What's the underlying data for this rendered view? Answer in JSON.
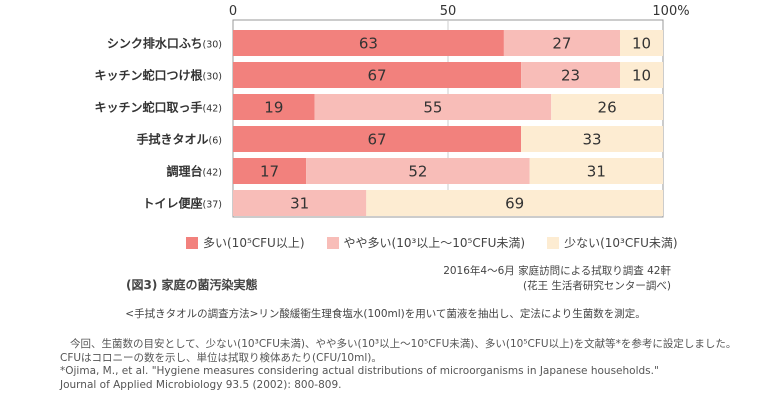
{
  "chart_data": {
    "type": "bar",
    "orientation": "horizontal",
    "stacked": true,
    "categories": [
      "シンク排水口ふち",
      "キッチン蛇口つけ根",
      "キッチン蛇口取っ手",
      "手拭きタオル",
      "調理台",
      "トイレ便座"
    ],
    "counts": [
      "(30)",
      "(30)",
      "(42)",
      "(6)",
      "(42)",
      "(37)"
    ],
    "series": [
      {
        "name": "多い(10⁵CFU以上)",
        "color": "#f2817d",
        "values": [
          63,
          67,
          19,
          67,
          17,
          0
        ]
      },
      {
        "name": "やや多い(10³以上～10⁵CFU未満)",
        "color": "#f8bdb8",
        "values": [
          27,
          23,
          55,
          0,
          52,
          31
        ]
      },
      {
        "name": "少ない(10³CFU未満)",
        "color": "#fdecd2",
        "values": [
          10,
          10,
          26,
          33,
          31,
          69
        ]
      }
    ],
    "xticks": [
      "0",
      "50",
      "100%"
    ],
    "xlim": [
      0,
      100
    ],
    "grid": true,
    "legend_position": "bottom-right",
    "title": "(図3) 家庭の菌汚染実態"
  },
  "source": {
    "line1": "2016年4～6月 家庭訪問による拭取り調査 42軒",
    "line2": "(花王 生活者研究センター調べ)"
  },
  "method": "<手拭きタオルの調査方法>リン酸緩衝生理食塩水(100ml)を用いて菌液を抽出し、定法により生菌数を測定。",
  "notes": [
    "今回、生菌数の目安として、少ない(10³CFU未満)、やや多い(10³以上～10⁵CFU未満)、多い(10⁵CFU以上)を文献等*を参考に設定しました。",
    "CFUはコロニーの数を示し、単位は拭取り検体あたり(CFU/10ml)。",
    "*Ojima, M., et al. \"Hygiene measures considering actual distributions of microorganisms in Japanese households.\"",
    "Journal of Applied Microbiology 93.5 (2002): 800-809."
  ]
}
